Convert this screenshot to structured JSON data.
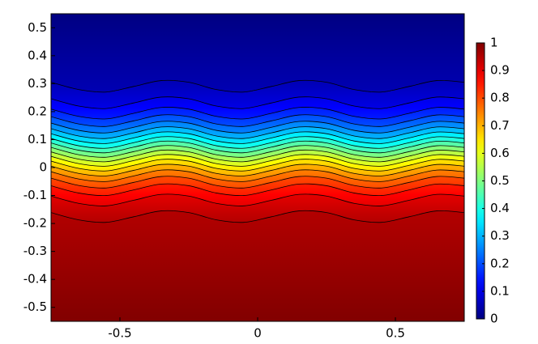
{
  "chart_data": {
    "type": "contour",
    "colormap": "jet",
    "xlim": [
      -0.75,
      0.75
    ],
    "ylim": [
      -0.55,
      0.55
    ],
    "xticks": [
      -0.5,
      0,
      0.5
    ],
    "yticks": [
      -0.5,
      -0.4,
      -0.3,
      -0.2,
      -0.1,
      0,
      0.1,
      0.2,
      0.3,
      0.4,
      0.5
    ],
    "colorbar": {
      "lim": [
        0,
        1
      ],
      "ticks": [
        0,
        0.1,
        0.2,
        0.3,
        0.4,
        0.5,
        0.6,
        0.7,
        0.8,
        0.9,
        1
      ]
    },
    "x": [
      -0.75,
      -0.65,
      -0.55,
      -0.45,
      -0.35,
      -0.25,
      -0.15,
      -0.05,
      0.05,
      0.15,
      0.25,
      0.35,
      0.45,
      0.55,
      0.65,
      0.75
    ],
    "contours": [
      {
        "level": 0.05,
        "values": [
          0.305,
          0.279,
          0.27,
          0.29,
          0.311,
          0.305,
          0.279,
          0.27,
          0.29,
          0.311,
          0.305,
          0.279,
          0.27,
          0.29,
          0.311,
          0.305
        ]
      },
      {
        "level": 0.1,
        "values": [
          0.246,
          0.22,
          0.211,
          0.231,
          0.252,
          0.246,
          0.22,
          0.211,
          0.231,
          0.252,
          0.246,
          0.22,
          0.211,
          0.231,
          0.252,
          0.246
        ]
      },
      {
        "level": 0.15,
        "values": [
          0.209,
          0.183,
          0.174,
          0.194,
          0.215,
          0.209,
          0.183,
          0.174,
          0.194,
          0.215,
          0.209,
          0.183,
          0.174,
          0.194,
          0.215,
          0.209
        ]
      },
      {
        "level": 0.2,
        "values": [
          0.182,
          0.156,
          0.147,
          0.167,
          0.188,
          0.182,
          0.156,
          0.147,
          0.167,
          0.188,
          0.182,
          0.156,
          0.147,
          0.167,
          0.188,
          0.182
        ]
      },
      {
        "level": 0.25,
        "values": [
          0.159,
          0.133,
          0.124,
          0.144,
          0.165,
          0.159,
          0.133,
          0.124,
          0.144,
          0.165,
          0.159,
          0.133,
          0.124,
          0.144,
          0.165,
          0.159
        ]
      },
      {
        "level": 0.3,
        "values": [
          0.139,
          0.113,
          0.104,
          0.124,
          0.145,
          0.139,
          0.113,
          0.104,
          0.124,
          0.145,
          0.139,
          0.113,
          0.104,
          0.124,
          0.145,
          0.139
        ]
      },
      {
        "level": 0.35,
        "values": [
          0.121,
          0.095,
          0.086,
          0.106,
          0.127,
          0.121,
          0.095,
          0.086,
          0.106,
          0.127,
          0.121,
          0.095,
          0.086,
          0.106,
          0.127,
          0.121
        ]
      },
      {
        "level": 0.4,
        "values": [
          0.104,
          0.078,
          0.069,
          0.089,
          0.11,
          0.104,
          0.078,
          0.069,
          0.089,
          0.11,
          0.104,
          0.078,
          0.069,
          0.089,
          0.11,
          0.104
        ]
      },
      {
        "level": 0.45,
        "values": [
          0.088,
          0.062,
          0.053,
          0.073,
          0.094,
          0.088,
          0.062,
          0.053,
          0.073,
          0.094,
          0.088,
          0.062,
          0.053,
          0.073,
          0.094,
          0.088
        ]
      },
      {
        "level": 0.5,
        "values": [
          0.072,
          0.046,
          0.037,
          0.057,
          0.078,
          0.072,
          0.046,
          0.037,
          0.057,
          0.078,
          0.072,
          0.046,
          0.037,
          0.057,
          0.078,
          0.072
        ]
      },
      {
        "level": 0.55,
        "values": [
          0.056,
          0.03,
          0.021,
          0.041,
          0.062,
          0.056,
          0.03,
          0.021,
          0.041,
          0.062,
          0.056,
          0.03,
          0.021,
          0.041,
          0.062,
          0.056
        ]
      },
      {
        "level": 0.6,
        "values": [
          0.04,
          0.014,
          0.005,
          0.025,
          0.046,
          0.04,
          0.014,
          0.005,
          0.025,
          0.046,
          0.04,
          0.014,
          0.005,
          0.025,
          0.046,
          0.04
        ]
      },
      {
        "level": 0.65,
        "values": [
          0.023,
          -0.003,
          -0.012,
          0.008,
          0.029,
          0.023,
          -0.003,
          -0.012,
          0.008,
          0.029,
          0.023,
          -0.003,
          -0.012,
          0.008,
          0.029,
          0.023
        ]
      },
      {
        "level": 0.7,
        "values": [
          0.005,
          -0.021,
          -0.03,
          -0.01,
          0.011,
          0.005,
          -0.021,
          -0.03,
          -0.01,
          0.011,
          0.005,
          -0.021,
          -0.03,
          -0.01,
          0.011,
          0.005
        ]
      },
      {
        "level": 0.75,
        "values": [
          -0.015,
          -0.041,
          -0.05,
          -0.03,
          -0.009,
          -0.015,
          -0.041,
          -0.05,
          -0.03,
          -0.009,
          -0.015,
          -0.041,
          -0.05,
          -0.03,
          -0.009,
          -0.015
        ]
      },
      {
        "level": 0.8,
        "values": [
          -0.038,
          -0.064,
          -0.073,
          -0.053,
          -0.032,
          -0.038,
          -0.064,
          -0.073,
          -0.053,
          -0.032,
          -0.038,
          -0.064,
          -0.073,
          -0.053,
          -0.032,
          -0.038
        ]
      },
      {
        "level": 0.85,
        "values": [
          -0.065,
          -0.091,
          -0.1,
          -0.08,
          -0.059,
          -0.065,
          -0.091,
          -0.1,
          -0.08,
          -0.059,
          -0.065,
          -0.091,
          -0.1,
          -0.08,
          -0.059,
          -0.065
        ]
      },
      {
        "level": 0.9,
        "values": [
          -0.102,
          -0.128,
          -0.137,
          -0.117,
          -0.096,
          -0.102,
          -0.128,
          -0.137,
          -0.117,
          -0.096,
          -0.102,
          -0.128,
          -0.137,
          -0.117,
          -0.096,
          -0.102
        ]
      },
      {
        "level": 0.95,
        "values": [
          -0.161,
          -0.187,
          -0.196,
          -0.176,
          -0.155,
          -0.161,
          -0.187,
          -0.196,
          -0.176,
          -0.155,
          -0.161,
          -0.187,
          -0.196,
          -0.176,
          -0.155,
          -0.161
        ]
      }
    ]
  }
}
